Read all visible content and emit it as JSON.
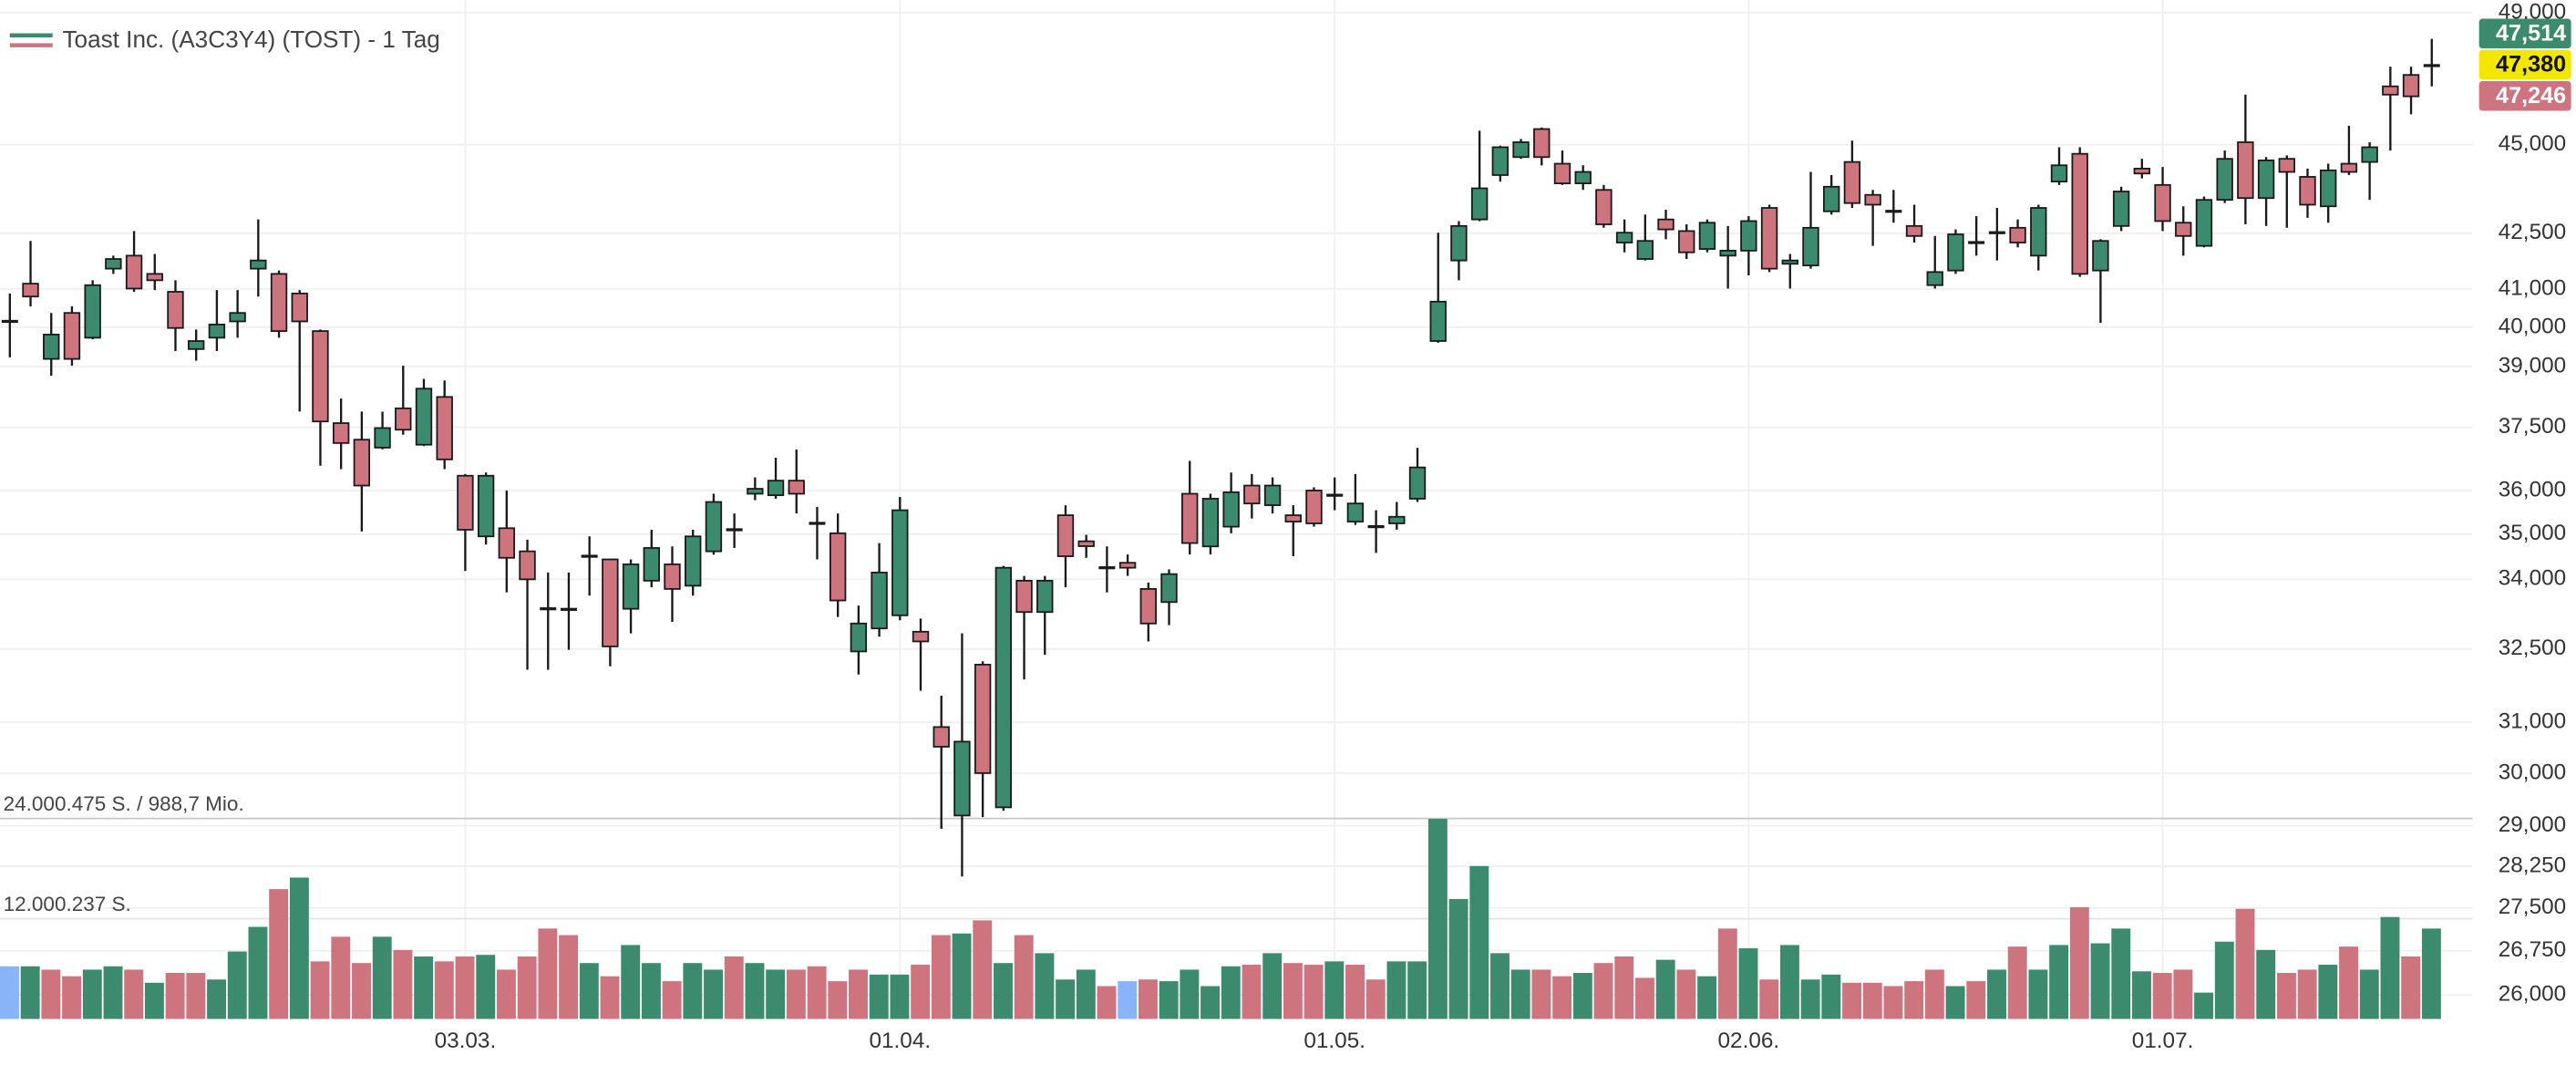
{
  "chart_data": {
    "type": "candlestick",
    "title": "Toast Inc. (A3C3Y4) (TOST) - 1 Tag",
    "categories": [
      null,
      null,
      null,
      null,
      null,
      null,
      null,
      null,
      null,
      null,
      null,
      null,
      null,
      null,
      null,
      null,
      null,
      null,
      null,
      null,
      null,
      null,
      "03.03.",
      null,
      null,
      null,
      null,
      null,
      null,
      null,
      null,
      null,
      null,
      null,
      null,
      null,
      null,
      null,
      null,
      null,
      null,
      null,
      null,
      "01.04.",
      null,
      null,
      null,
      null,
      null,
      null,
      null,
      null,
      null,
      null,
      null,
      null,
      null,
      null,
      null,
      null,
      null,
      null,
      null,
      null,
      "01.05.",
      null,
      null,
      null,
      null,
      null,
      null,
      null,
      null,
      null,
      null,
      null,
      null,
      null,
      null,
      null,
      null,
      null,
      null,
      null,
      "02.06.",
      null,
      null,
      null,
      null,
      null,
      null,
      null,
      null,
      null,
      null,
      null,
      null,
      null,
      null,
      null,
      null,
      null,
      null,
      null,
      "01.07.",
      null,
      null,
      null,
      null,
      null,
      null,
      null,
      null,
      null,
      null,
      null,
      null,
      null
    ],
    "open": [
      40150,
      41140,
      39190,
      40370,
      39730,
      41540,
      41890,
      41400,
      40925,
      39440,
      39730,
      40150,
      41540,
      41400,
      40880,
      39900,
      37600,
      37200,
      37010,
      37960,
      37080,
      38240,
      36345,
      34950,
      35135,
      34615,
      33355,
      33355,
      34505,
      34435,
      33355,
      33965,
      34325,
      33855,
      34615,
      35100,
      35925,
      35890,
      36230,
      35245,
      35020,
      32450,
      32935,
      33215,
      32865,
      30905,
      29190,
      32175,
      29345,
      33965,
      33285,
      35430,
      34840,
      34250,
      34360,
      33785,
      33500,
      35925,
      34725,
      35170,
      36115,
      35660,
      35430,
      36000,
      35890,
      35285,
      35170,
      35245,
      35810,
      39645,
      41760,
      42880,
      44125,
      44640,
      45455,
      44450,
      43890,
      43705,
      42245,
      41800,
      42880,
      42560,
      42070,
      41890,
      42025,
      43200,
      41670,
      41625,
      43105,
      44500,
      43565,
      43105,
      42700,
      41100,
      41490,
      42245,
      42515,
      42650,
      41890,
      43940,
      44735,
      41490,
      42700,
      44310,
      43845,
      42790,
      42155,
      43425,
      45070,
      43475,
      44590,
      44075,
      43245,
      44450,
      44500,
      46725,
      47070,
      47330
    ],
    "high": [
      40880,
      42290,
      40370,
      40540,
      41230,
      41890,
      42560,
      41935,
      41230,
      39940,
      40970,
      40970,
      42880,
      41490,
      40970,
      39940,
      38200,
      37880,
      37880,
      39020,
      38690,
      38650,
      36385,
      36420,
      36000,
      34875,
      34145,
      34145,
      34950,
      34435,
      34435,
      35100,
      34725,
      35100,
      35925,
      35470,
      36305,
      36770,
      36965,
      35620,
      35470,
      33425,
      34800,
      35850,
      33145,
      31535,
      32830,
      32245,
      34290,
      34070,
      34070,
      35660,
      34985,
      34725,
      34545,
      33925,
      34215,
      36695,
      35925,
      36420,
      36385,
      36305,
      35660,
      36075,
      36305,
      36385,
      35545,
      35735,
      37005,
      42515,
      42835,
      45405,
      44970,
      45165,
      45500,
      44830,
      44405,
      43845,
      42880,
      43015,
      43150,
      42745,
      42880,
      42700,
      42970,
      43290,
      41935,
      44215,
      44125,
      45115,
      43705,
      43705,
      43290,
      42425,
      42605,
      42970,
      43200,
      42880,
      43290,
      44925,
      44925,
      42335,
      43795,
      44590,
      44355,
      43245,
      43520,
      44830,
      46475,
      44640,
      44690,
      44310,
      44450,
      45550,
      45070,
      47320,
      47320,
      48180
    ],
    "low": [
      39230,
      40540,
      38770,
      39020,
      39690,
      41400,
      40925,
      40970,
      39390,
      39145,
      39390,
      39730,
      40800,
      39730,
      37880,
      36580,
      36500,
      35060,
      36970,
      37320,
      37045,
      36500,
      34180,
      34765,
      33710,
      32070,
      32070,
      32485,
      33640,
      32140,
      32830,
      33820,
      33075,
      33640,
      34540,
      34690,
      35775,
      35810,
      35470,
      34435,
      33180,
      31970,
      32760,
      33110,
      31635,
      28940,
      28065,
      29160,
      29280,
      31870,
      32380,
      33820,
      34470,
      33710,
      34070,
      32660,
      33005,
      34545,
      34545,
      35020,
      35355,
      35470,
      34505,
      35170,
      35545,
      35210,
      34580,
      35100,
      35735,
      39600,
      41230,
      42835,
      43940,
      44590,
      44400,
      43845,
      43705,
      42650,
      41980,
      41760,
      42335,
      41800,
      41980,
      41010,
      41360,
      41450,
      41010,
      41540,
      43015,
      43200,
      42155,
      42790,
      42245,
      41010,
      41400,
      41890,
      41760,
      42115,
      41490,
      43845,
      41320,
      40110,
      42560,
      44030,
      42560,
      41890,
      42115,
      43335,
      42745,
      42700,
      42650,
      42925,
      42790,
      44125,
      43425,
      44830,
      45890,
      46725
    ],
    "close": [
      40150,
      40800,
      39810,
      39190,
      41100,
      41800,
      41010,
      41230,
      39980,
      39645,
      40070,
      40370,
      41760,
      39900,
      40150,
      37640,
      37120,
      36115,
      37480,
      37440,
      38445,
      36730,
      35100,
      36345,
      34470,
      33995,
      33355,
      33330,
      34505,
      32555,
      34325,
      34690,
      33785,
      34950,
      35735,
      35100,
      36040,
      36230,
      35925,
      35245,
      33535,
      33040,
      34145,
      35545,
      32660,
      30515,
      30615,
      30000,
      34250,
      33285,
      33965,
      34505,
      34730,
      34250,
      34250,
      33040,
      34110,
      34800,
      35810,
      35960,
      35700,
      36115,
      35285,
      35245,
      35890,
      35700,
      35170,
      35395,
      36540,
      40665,
      42700,
      43750,
      44925,
      45070,
      44640,
      43890,
      44215,
      42745,
      42515,
      42290,
      42605,
      41980,
      42790,
      42025,
      42835,
      41540,
      41760,
      42650,
      43795,
      43335,
      43290,
      43105,
      42425,
      41450,
      42470,
      42245,
      42515,
      42245,
      43200,
      44405,
      41400,
      42290,
      43660,
      44170,
      42835,
      42425,
      43425,
      44590,
      43475,
      44545,
      44215,
      43290,
      44260,
      44215,
      44925,
      46475,
      46425,
      47380
    ],
    "volume": [
      6300000,
      6300000,
      5900000,
      5110000,
      5900000,
      6300000,
      5900000,
      4330000,
      5510000,
      5510000,
      4720000,
      8070000,
      11020000,
      15540000,
      16920000,
      6890000,
      9840000,
      6690000,
      9840000,
      8260000,
      7480000,
      6890000,
      7480000,
      7670000,
      5900000,
      7480000,
      10820000,
      10030000,
      6690000,
      5110000,
      8850000,
      6690000,
      4520000,
      6690000,
      5900000,
      7480000,
      6690000,
      5900000,
      5900000,
      6300000,
      4520000,
      5900000,
      5310000,
      5310000,
      6490000,
      10030000,
      10230000,
      11800000,
      6690000,
      10030000,
      7870000,
      4720000,
      5900000,
      3930000,
      4520000,
      4720000,
      4520000,
      5900000,
      3930000,
      6300000,
      6490000,
      7870000,
      6690000,
      6490000,
      6890000,
      6490000,
      4720000,
      6890000,
      6890000,
      23950000,
      14360000,
      18300000,
      7870000,
      5900000,
      5900000,
      5110000,
      5510000,
      6690000,
      7480000,
      4920000,
      7080000,
      5900000,
      5110000,
      10820000,
      8460000,
      4720000,
      8850000,
      4720000,
      5310000,
      4330000,
      4330000,
      3930000,
      4520000,
      5900000,
      3930000,
      4520000,
      5900000,
      8660000,
      5900000,
      8850000,
      13380000,
      9050000,
      10820000,
      5700000,
      5510000,
      5900000,
      3150000,
      9250000,
      13180000,
      8260000,
      5510000,
      5900000,
      6490000,
      8660000,
      5900000,
      12200000,
      7480000,
      10820000
    ],
    "ylim": [
      25600,
      49400
    ],
    "log": true,
    "yticks": [
      {
        "value": 26000,
        "label": "26,000"
      },
      {
        "value": 26750,
        "label": "26,750"
      },
      {
        "value": 27500,
        "label": "27,500"
      },
      {
        "value": 28250,
        "label": "28,250"
      },
      {
        "value": 29000,
        "label": "29,000"
      },
      {
        "value": 30000,
        "label": "30,000"
      },
      {
        "value": 31000,
        "label": "31,000"
      },
      {
        "value": 32500,
        "label": "32,500"
      },
      {
        "value": 34000,
        "label": "34,000"
      },
      {
        "value": 35000,
        "label": "35,000"
      },
      {
        "value": 36000,
        "label": "36,000"
      },
      {
        "value": 37500,
        "label": "37,500"
      },
      {
        "value": 39000,
        "label": "39,000"
      },
      {
        "value": 40000,
        "label": "40,000"
      },
      {
        "value": 41000,
        "label": "41,000"
      },
      {
        "value": 42500,
        "label": "42,500"
      },
      {
        "value": 45000,
        "label": "45,000"
      },
      {
        "value": 49000,
        "label": "49,000"
      }
    ],
    "y2lim": [
      0,
      24000475
    ],
    "y2ticks": [
      {
        "value": 24000475,
        "label": "24.000.475 S. / 988,7 Mio."
      },
      {
        "value": 12000237,
        "label": "12.000.237 S."
      }
    ],
    "grid": true,
    "colors": {
      "up": "#3d8b6e",
      "down": "#cd747f",
      "neutral": "#8ab4f8",
      "wick": "#1a1a1a"
    },
    "price_labels": [
      {
        "value": 47514,
        "label": "47,514",
        "color": "#3d8b6e",
        "text_color": "#ffffff"
      },
      {
        "value": 47380,
        "label": "47,380",
        "color": "#f3e600",
        "text_color": "#111111"
      },
      {
        "value": 47246,
        "label": "47,246",
        "color": "#cd747f",
        "text_color": "#ffffff"
      }
    ]
  }
}
